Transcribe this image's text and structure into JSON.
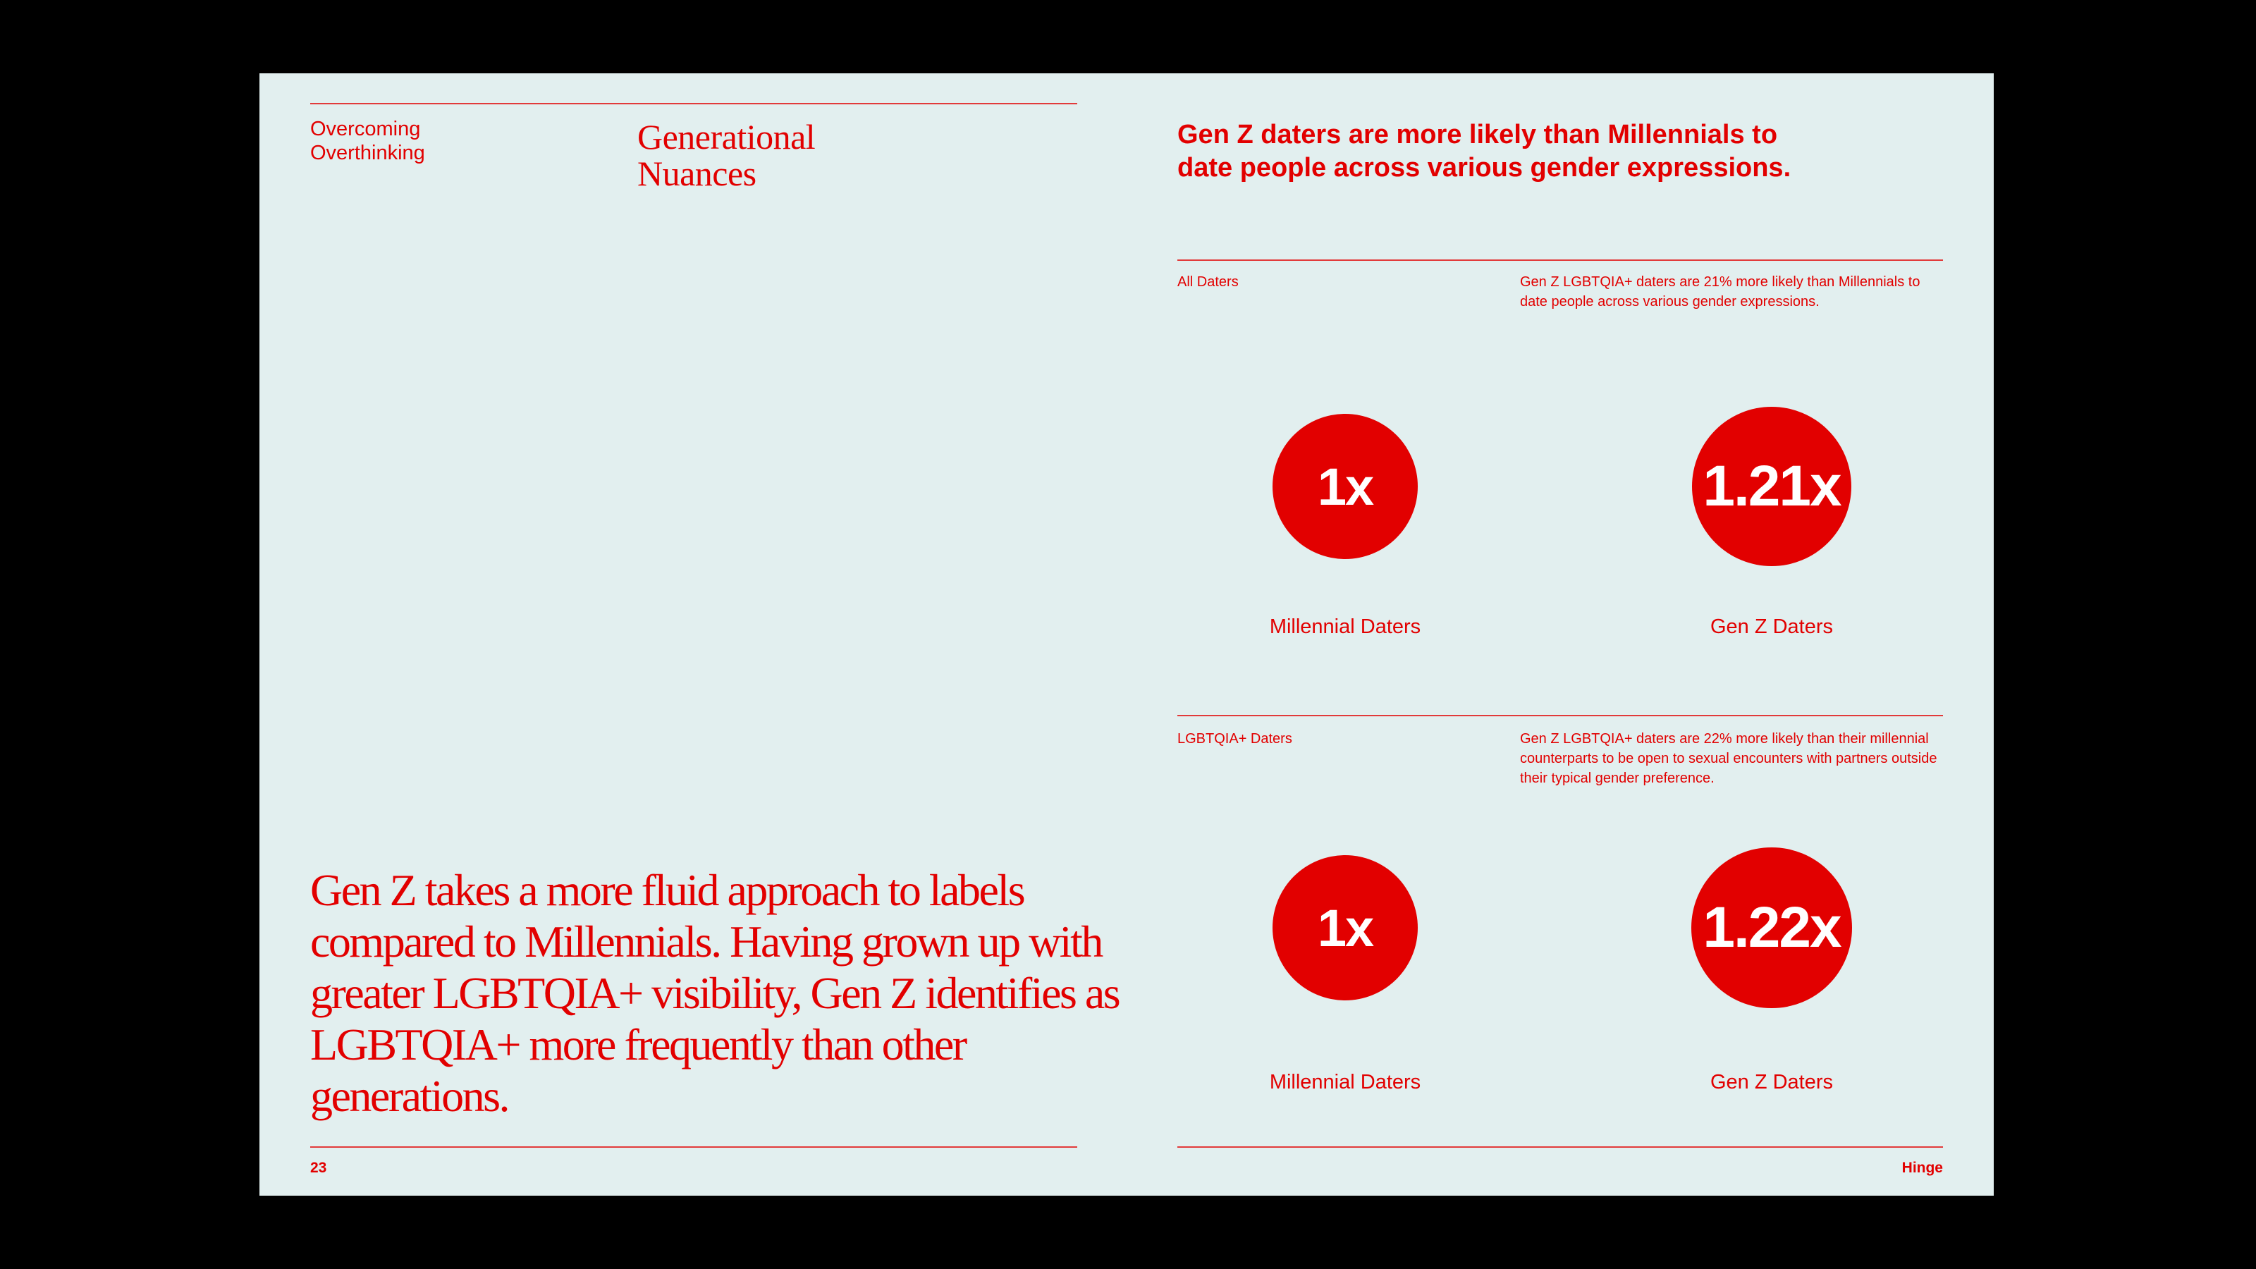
{
  "header": {
    "section": "Overcoming\nOverthinking",
    "chapter": "Generational\nNuances"
  },
  "left": {
    "quote": "Gen Z takes a more fluid approach to labels compared to Millennials. Having grown up with greater LGBTQIA+ visibility, Gen Z identifies as LGBTQIA+ more frequently than other generations."
  },
  "right": {
    "headline": "Gen Z daters are more likely than Millennials to date people across various gender expressions."
  },
  "colors": {
    "accent": "#e20000",
    "page_background": "#e2efef",
    "outer_background": "#000000"
  },
  "chart_data": [
    {
      "type": "bubble",
      "group_label": "All Daters",
      "description": "Gen Z LGBTQIA+ daters are 21% more likely than Millennials to date people across various gender expressions.",
      "categories": [
        "Millennial Daters",
        "Gen Z Daters"
      ],
      "values": [
        1,
        1.21
      ],
      "value_labels": [
        "1x",
        "1.21x"
      ]
    },
    {
      "type": "bubble",
      "group_label": "LGBTQIA+ Daters",
      "description": "Gen Z LGBTQIA+ daters are 22% more likely than their millennial counterparts to be open to sexual encounters with partners outside their typical gender preference.",
      "categories": [
        "Millennial Daters",
        "Gen Z Daters"
      ],
      "values": [
        1,
        1.22
      ],
      "value_labels": [
        "1x",
        "1.22x"
      ]
    }
  ],
  "footer": {
    "page_number": "23",
    "brand": "Hinge"
  }
}
